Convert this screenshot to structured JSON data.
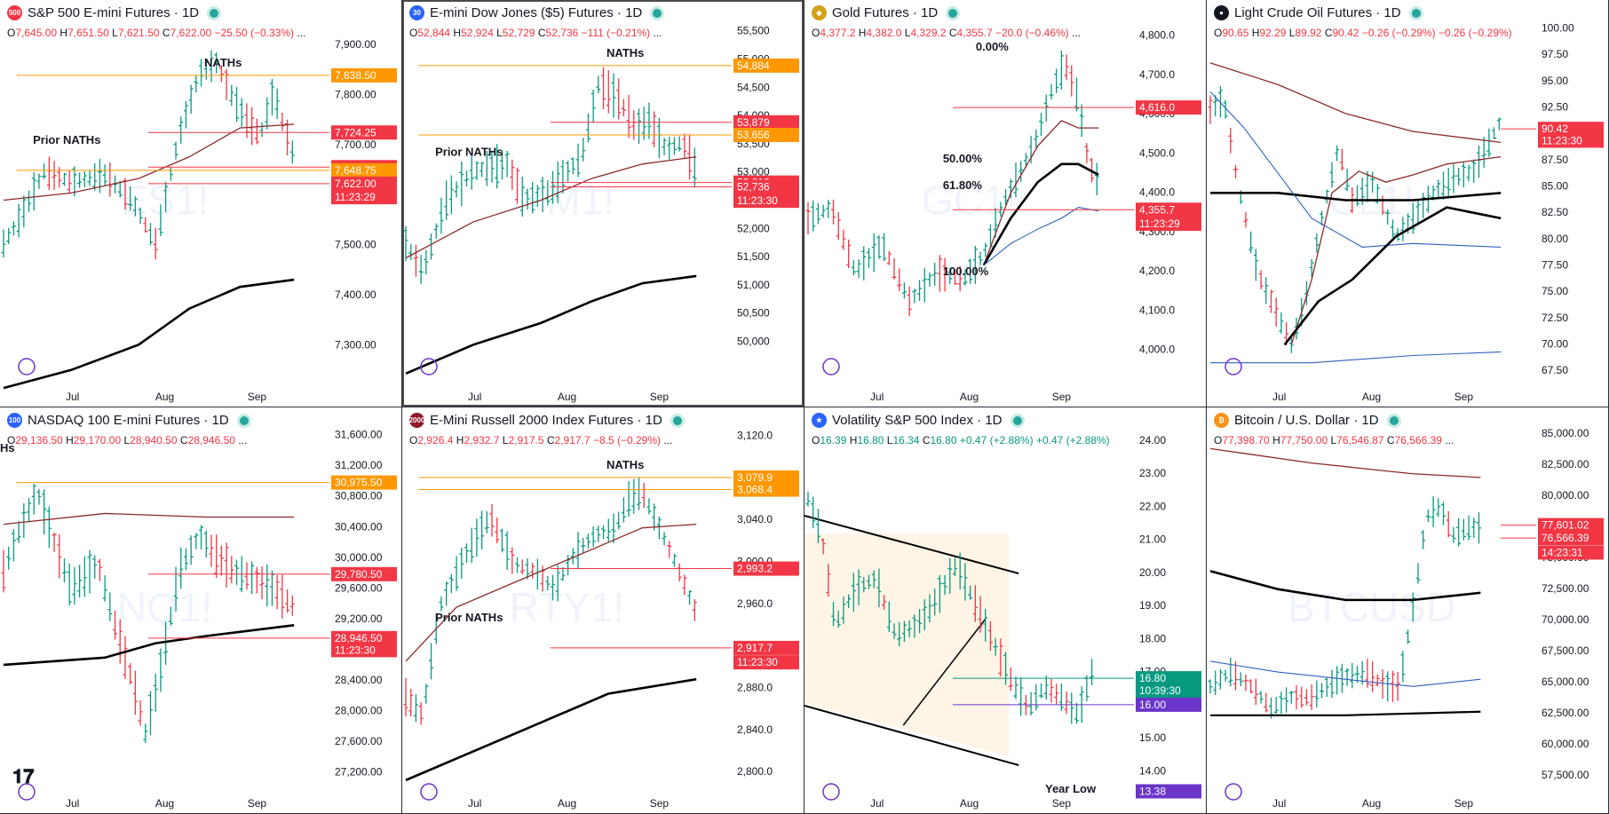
{
  "panels": [
    {
      "id": "es",
      "title": "S&P 500 E-mini Futures · 1D",
      "logo_text": "500",
      "logo_color": "#f23645",
      "ohlc": {
        "o": "7,645.00",
        "h": "7,651.50",
        "l": "7,621.50",
        "c": "7,622.00",
        "chg": "−25.50 (−0.33%)",
        "more": "...",
        "dir": "down"
      },
      "watermark": "ES1!",
      "chart_data": {
        "type": "bar",
        "title": "S&P 500 E-mini Futures · 1D",
        "x_labels": [
          "Jul",
          "Aug",
          "Sep"
        ],
        "y_ticks": [
          "7,900.00",
          "7,800.00",
          "7,700.00",
          "7,600.00",
          "7,500.00",
          "7,400.00",
          "7,300.00"
        ],
        "ylim": [
          7228,
          7950
        ],
        "price_labels": [
          {
            "text": "7,838.50",
            "value": 7838.5,
            "color": "#ff9800"
          },
          {
            "text": "7,724.25",
            "value": 7724.25,
            "color": "#f23645"
          },
          {
            "text": "7,655.00",
            "value": 7655,
            "color": "#f23645"
          },
          {
            "text": "7,648.75",
            "value": 7648.75,
            "color": "#ff9800"
          },
          {
            "text": "7,622.00",
            "value": 7622,
            "color": "#f23645"
          },
          {
            "text": "11:23:29",
            "value": 7595,
            "color": "#f23645"
          }
        ],
        "annotations": [
          {
            "text": "NATHs"
          },
          {
            "text": "Prior NATHs"
          }
        ]
      }
    },
    {
      "id": "ym",
      "title": "E-mini Dow Jones ($5) Futures · 1D",
      "logo_text": "30",
      "logo_color": "#2962ff",
      "ohlc": {
        "o": "52,844",
        "h": "52,924",
        "l": "52,729",
        "c": "52,736",
        "chg": "−111 (−0.21%)",
        "more": "...",
        "dir": "down"
      },
      "watermark": "YM1!",
      "chart_data": {
        "type": "bar",
        "title": "E-mini Dow Jones ($5) Futures · 1D",
        "x_labels": [
          "Jul",
          "Aug",
          "Sep"
        ],
        "y_ticks": [
          "55,500",
          "55,000",
          "54,500",
          "54,000",
          "53,500",
          "53,000",
          "52,500",
          "52,000",
          "51,500",
          "51,000",
          "50,500",
          "50,000"
        ],
        "ylim": [
          49300,
          55700
        ],
        "price_labels": [
          {
            "text": "54,884",
            "value": 54884,
            "color": "#ff9800"
          },
          {
            "text": "53,879",
            "value": 53879,
            "color": "#f23645"
          },
          {
            "text": "53,656",
            "value": 53656,
            "color": "#ff9800"
          },
          {
            "text": "52,812",
            "value": 52812,
            "color": "#f23645"
          },
          {
            "text": "52,736",
            "value": 52736,
            "color": "#f23645"
          },
          {
            "text": "11:23:30",
            "value": 52490,
            "color": "#f23645"
          }
        ],
        "annotations": [
          {
            "text": "NATHs"
          },
          {
            "text": "Prior NATHs"
          }
        ]
      }
    },
    {
      "id": "gc",
      "title": "Gold Futures · 1D",
      "logo_text": "◆",
      "logo_color": "#d4a017",
      "ohlc": {
        "o": "4,377.2",
        "h": "4,382.0",
        "l": "4,329.2",
        "c": "4,355.7",
        "chg": "−20.0 (−0.46%)",
        "more": "...",
        "dir": "down"
      },
      "watermark": "GC1!",
      "chart_data": {
        "type": "bar",
        "title": "Gold Futures · 1D",
        "x_labels": [
          "Jul",
          "Aug",
          "Sep"
        ],
        "y_ticks": [
          "4,800.0",
          "4,700.0",
          "4,600.0",
          "4,500.0",
          "4,400.0",
          "4,300.0",
          "4,200.0",
          "4,100.0",
          "4,000.0"
        ],
        "ylim": [
          3920,
          4840
        ],
        "price_labels": [
          {
            "text": "4,616.0",
            "value": 4616,
            "color": "#f23645"
          },
          {
            "text": "4,355.7",
            "value": 4355.7,
            "color": "#f23645"
          },
          {
            "text": "11:23:29",
            "value": 4320,
            "color": "#f23645"
          }
        ],
        "annotations": [
          {
            "text": "0.00%"
          },
          {
            "text": "50.00%"
          },
          {
            "text": "61.80%"
          },
          {
            "text": "100.00%"
          }
        ]
      }
    },
    {
      "id": "cl",
      "title": "Light Crude Oil Futures · 1D",
      "logo_text": "●",
      "logo_color": "#131722",
      "ohlc": {
        "o": "90.65",
        "h": "92.29",
        "l": "89.92",
        "c": "90.42",
        "chg": "−0.26 (−0.29%)",
        "extra": "−0.26 (−0.29%)",
        "dir": "down"
      },
      "watermark": "CL1!",
      "chart_data": {
        "type": "bar",
        "title": "Light Crude Oil Futures · 1D",
        "x_labels": [
          "Jul",
          "Aug",
          "Sep"
        ],
        "y_ticks": [
          "100.00",
          "97.50",
          "95.00",
          "92.50",
          "90.00",
          "87.50",
          "85.00",
          "82.50",
          "80.00",
          "77.50",
          "75.00",
          "72.50",
          "70.00",
          "67.50"
        ],
        "ylim": [
          66.5,
          100.8
        ],
        "price_labels": [
          {
            "text": "90.42",
            "value": 90.42,
            "color": "#f23645"
          },
          {
            "text": "11:23:30",
            "value": 89.3,
            "color": "#f23645"
          }
        ]
      }
    },
    {
      "id": "nq",
      "title": "NASDAQ 100 E-mini Futures · 1D",
      "logo_text": "100",
      "logo_color": "#2962ff",
      "ohlc": {
        "o": "29,136.50",
        "h": "29,170.00",
        "l": "28,940.50",
        "c": "28,946.50",
        "chg": "",
        "more": "...",
        "dir": "down"
      },
      "watermark": "NQ1!",
      "chart_data": {
        "type": "bar",
        "title": "NASDAQ 100 E-mini Futures · 1D",
        "x_labels": [
          "Jul",
          "Aug",
          "Sep"
        ],
        "y_ticks": [
          "31,600.00",
          "31,200.00",
          "30,800.00",
          "30,400.00",
          "30,000.00",
          "29,600.00",
          "29,200.00",
          "28,800.00",
          "28,400.00",
          "28,000.00",
          "27,600.00",
          "27,200.00"
        ],
        "ylim": [
          27000,
          31700
        ],
        "price_labels": [
          {
            "text": "30,975.50",
            "value": 30975.5,
            "color": "#ff9800"
          },
          {
            "text": "29,780.50",
            "value": 29780.5,
            "color": "#f23645"
          },
          {
            "text": "28,946.50",
            "value": 28946.5,
            "color": "#f23645"
          },
          {
            "text": "11:23:30",
            "value": 28790,
            "color": "#f23645"
          }
        ],
        "annotations": [
          {
            "text": "Hs"
          }
        ]
      }
    },
    {
      "id": "rty",
      "title": "E-Mini Russell 2000 Index Futures · 1D",
      "logo_text": "2000",
      "logo_color": "#8b1a2b",
      "ohlc": {
        "o": "2,926.4",
        "h": "2,932.7",
        "l": "2,917.5",
        "c": "2,917.7",
        "chg": "−8.5 (−0.29%)",
        "more": "...",
        "dir": "down"
      },
      "watermark": "RTY1!",
      "chart_data": {
        "type": "bar",
        "title": "E-Mini Russell 2000 Index Futures · 1D",
        "x_labels": [
          "Jul",
          "Aug",
          "Sep"
        ],
        "y_ticks": [
          "3,120.0",
          "3,080.0",
          "3,040.0",
          "3,000.0",
          "2,960.0",
          "2,920.0",
          "2,880.0",
          "2,840.0",
          "2,800.0"
        ],
        "ylim": [
          2785,
          3128
        ],
        "price_labels": [
          {
            "text": "3,079.9",
            "value": 3079.9,
            "color": "#ff9800"
          },
          {
            "text": "3,068.4",
            "value": 3068.4,
            "color": "#ff9800"
          },
          {
            "text": "2,993.2",
            "value": 2993.2,
            "color": "#f23645"
          },
          {
            "text": "2,917.7",
            "value": 2917.7,
            "color": "#f23645"
          },
          {
            "text": "11:23:30",
            "value": 2904,
            "color": "#f23645"
          }
        ],
        "annotations": [
          {
            "text": "NATHs"
          },
          {
            "text": "Prior NATHs"
          }
        ]
      }
    },
    {
      "id": "vix",
      "title": "Volatility S&P 500 Index · 1D",
      "logo_text": "★",
      "logo_color": "#2962ff",
      "ohlc": {
        "o": "16.39",
        "h": "16.80",
        "l": "16.34",
        "c": "16.80",
        "chg": "+0.47 (+2.88%)",
        "extra": "+0.47 (+2.88%)",
        "dir": "up"
      },
      "watermark": "VIX",
      "chart_data": {
        "type": "bar",
        "title": "Volatility S&P 500 Index · 1D",
        "x_labels": [
          "Jul",
          "Aug",
          "Sep"
        ],
        "y_ticks": [
          "24.00",
          "23.00",
          "22.00",
          "21.00",
          "20.00",
          "19.00",
          "18.00",
          "17.00",
          "16.00",
          "15.00",
          "14.00"
        ],
        "ylim": [
          13.5,
          24.4
        ],
        "price_labels": [
          {
            "text": "16.80",
            "value": 16.8,
            "color": "#089981"
          },
          {
            "text": "10:39:30",
            "value": 16.42,
            "color": "#089981"
          },
          {
            "text": "16.00",
            "value": 16,
            "color": "#6b35c9"
          },
          {
            "text": "13.38",
            "value": 13.38,
            "color": "#6b35c9"
          }
        ],
        "annotations": [
          {
            "text": "Year Low"
          }
        ]
      }
    },
    {
      "id": "btc",
      "title": "Bitcoin / U.S. Dollar · 1D",
      "logo_text": "₿",
      "logo_color": "#f7931a",
      "ohlc": {
        "o": "77,398.70",
        "h": "77,750.00",
        "l": "76,546.87",
        "c": "76,566.39",
        "chg": "",
        "more": "...",
        "dir": "down"
      },
      "watermark": "BTCUSD",
      "chart_data": {
        "type": "bar",
        "title": "Bitcoin / U.S. Dollar · 1D",
        "x_labels": [
          "Jul",
          "Aug",
          "Sep"
        ],
        "y_ticks": [
          "85,000.00",
          "82,500.00",
          "80,000.00",
          "77,500.00",
          "75,000.00",
          "72,500.00",
          "70,000.00",
          "67,500.00",
          "65,000.00",
          "62,500.00",
          "60,000.00",
          "57,500.00"
        ],
        "ylim": [
          56500,
          85500
        ],
        "price_labels": [
          {
            "text": "77,601.02",
            "value": 77601.02,
            "color": "#f23645"
          },
          {
            "text": "76,566.39",
            "value": 76566.39,
            "color": "#f23645"
          },
          {
            "text": "14:23:31",
            "value": 75400,
            "color": "#f23645"
          }
        ]
      }
    }
  ],
  "colors": {
    "up": "#089981",
    "down": "#f23645",
    "orange": "#ff9800",
    "maroon": "#8b2a2a",
    "blue": "#2f5fbf",
    "black": "#000000"
  }
}
